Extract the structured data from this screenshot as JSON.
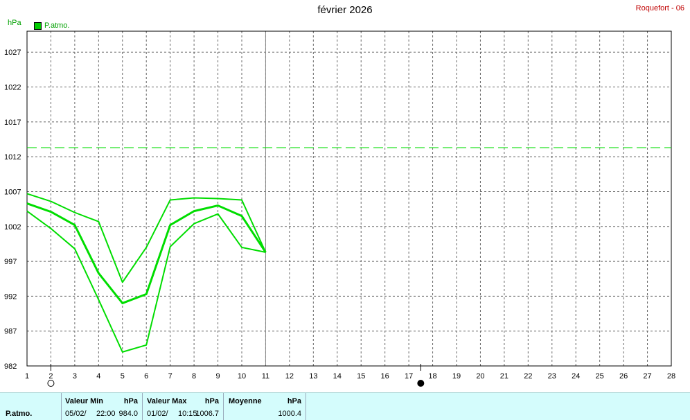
{
  "header": {
    "title": "février 2026",
    "station": "Roquefort - 06",
    "unit": "hPa"
  },
  "legend": {
    "label": "P.atmo.",
    "color": "#00cc00"
  },
  "chart_data": {
    "type": "line",
    "title": "février 2026",
    "ylabel": "hPa",
    "xlim": [
      1,
      28
    ],
    "ylim": [
      982,
      1030
    ],
    "x_ticks": [
      1,
      2,
      3,
      4,
      5,
      6,
      7,
      8,
      9,
      10,
      11,
      12,
      13,
      14,
      15,
      16,
      17,
      18,
      19,
      20,
      21,
      22,
      23,
      24,
      25,
      26,
      27,
      28
    ],
    "y_ticks": [
      982,
      987,
      992,
      997,
      1002,
      1007,
      1012,
      1017,
      1022,
      1027
    ],
    "grid": true,
    "cursor_x": 11,
    "reference_line": {
      "y": 1013.3,
      "style": "dashed"
    },
    "moon_phases": [
      {
        "day": 2,
        "phase": "full"
      },
      {
        "day": 17.5,
        "phase": "new"
      }
    ],
    "series": [
      {
        "role": "max",
        "x": [
          1,
          2,
          3,
          4,
          5,
          6,
          7,
          8,
          9,
          10,
          11
        ],
        "values": [
          1006.7,
          1005.6,
          1004.0,
          1002.7,
          994.0,
          999.0,
          1005.8,
          1006.1,
          1006.0,
          1005.8,
          998.3
        ]
      },
      {
        "role": "mean",
        "x": [
          1,
          2,
          3,
          4,
          5,
          6,
          7,
          8,
          9,
          10,
          11
        ],
        "values": [
          1005.3,
          1004.1,
          1002.2,
          995.3,
          991.0,
          992.3,
          1002.2,
          1004.2,
          1005.0,
          1003.5,
          998.3
        ]
      },
      {
        "role": "min",
        "x": [
          1,
          2,
          3,
          4,
          5,
          6,
          7,
          8,
          9,
          10,
          11
        ],
        "values": [
          1004.2,
          1001.7,
          998.8,
          991.5,
          984.0,
          985.0,
          999.1,
          1002.4,
          1003.8,
          999.0,
          998.3
        ]
      }
    ],
    "color": "#00dd00"
  },
  "stats": {
    "row_label": "P.atmo.",
    "min": {
      "header": "Valeur Min",
      "unit": "hPa",
      "date": "05/02/",
      "time": "22:00",
      "value": "984.0"
    },
    "max": {
      "header": "Valeur Max",
      "unit": "hPa",
      "date": "01/02/",
      "time": "10:15",
      "value": "1006.7"
    },
    "mean": {
      "header": "Moyenne",
      "unit": "hPa",
      "value": "1000.4"
    }
  }
}
